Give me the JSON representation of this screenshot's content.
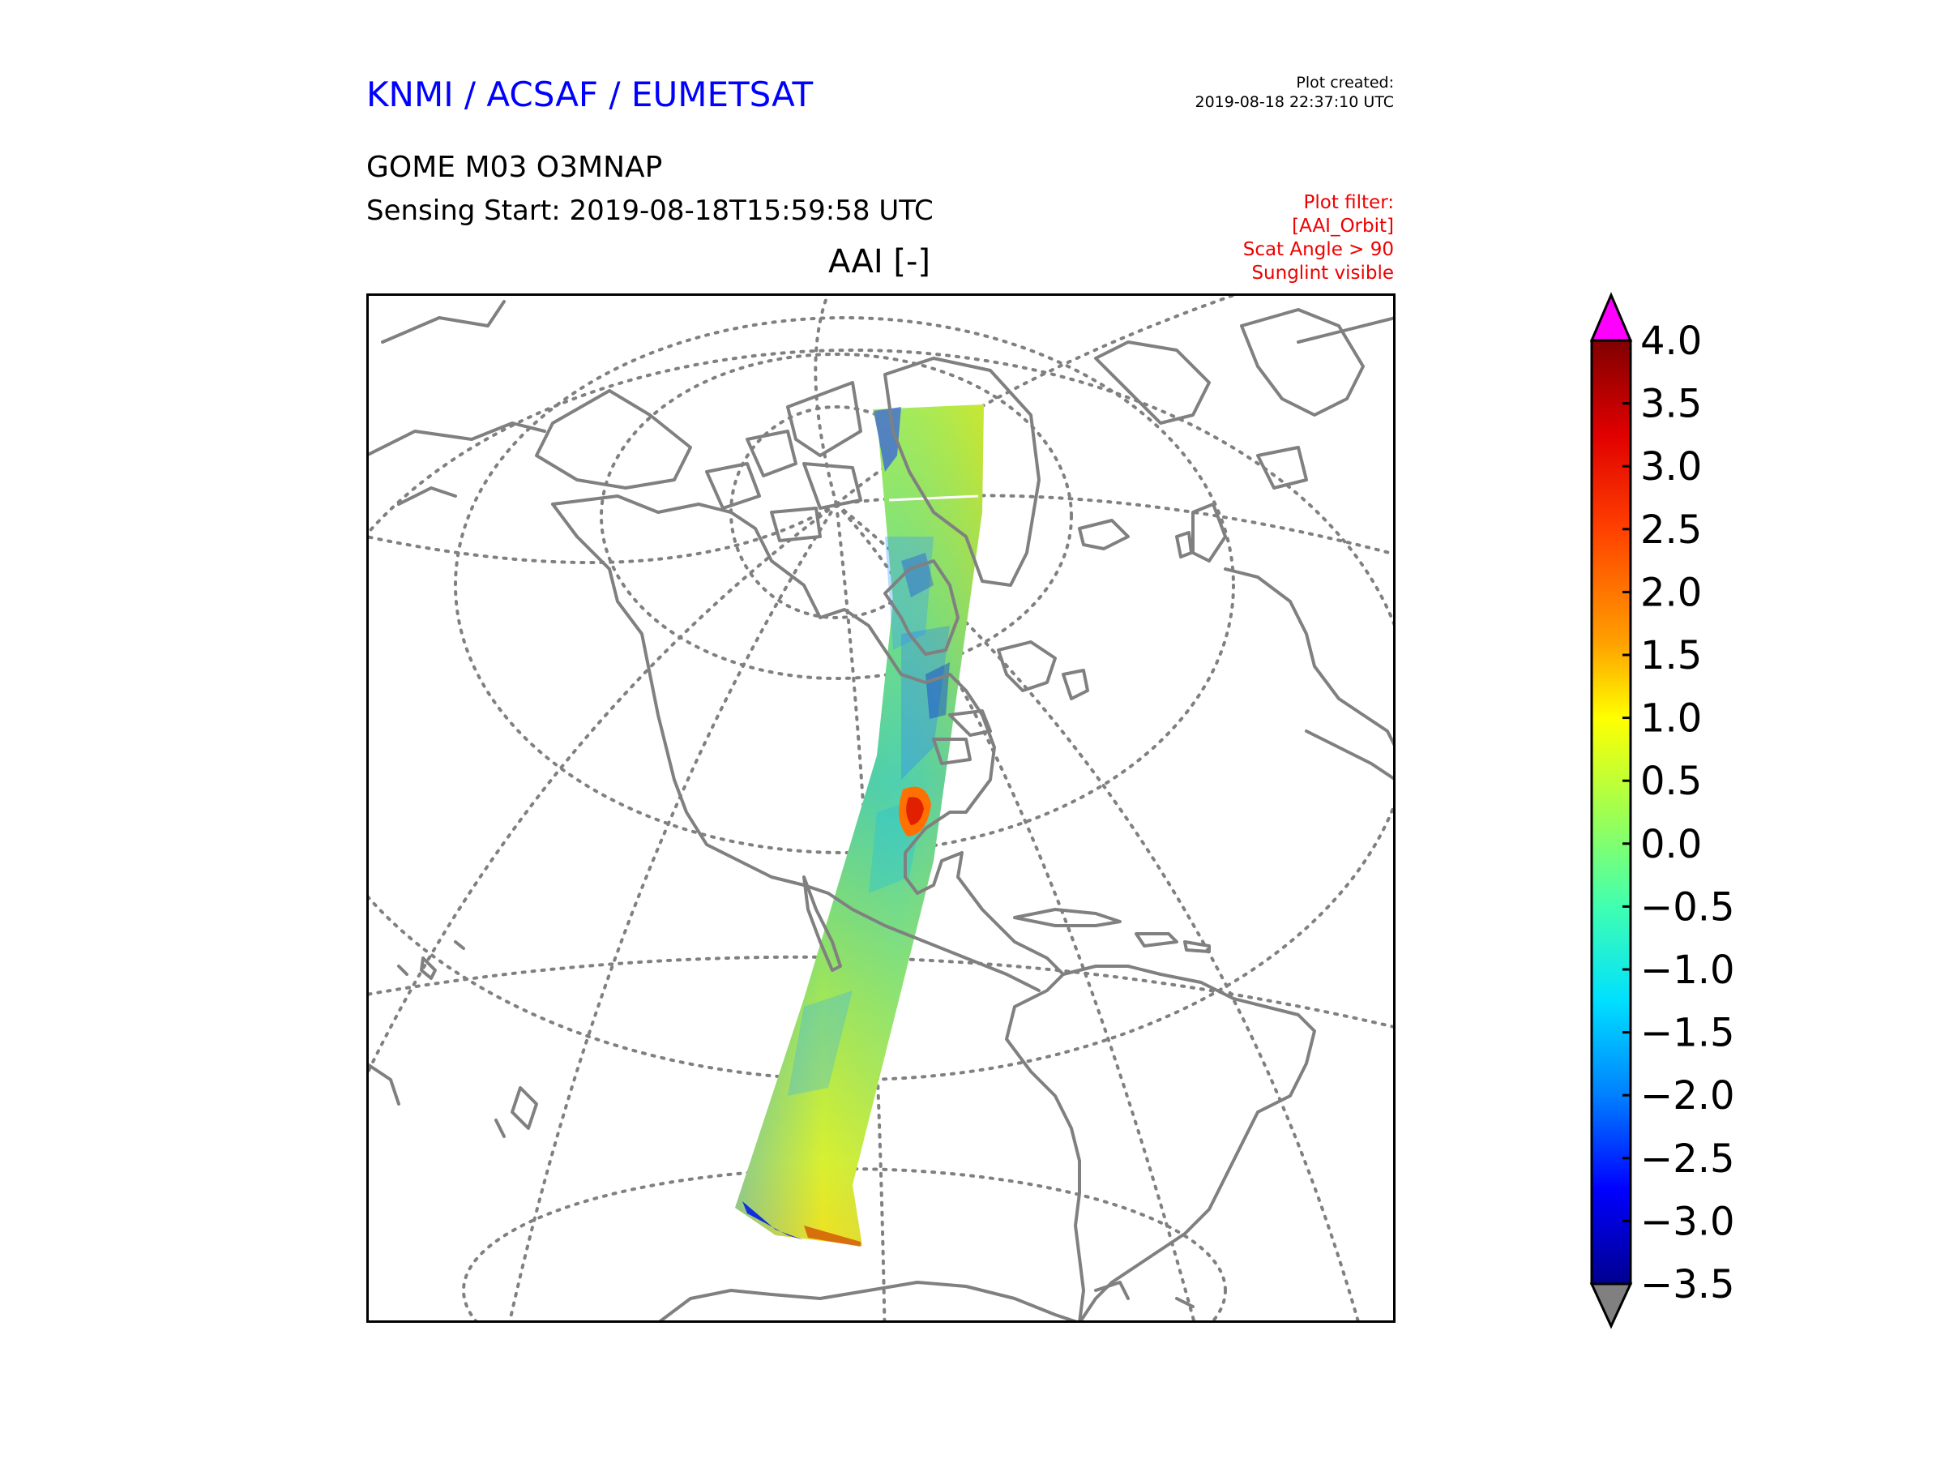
{
  "header": {
    "organization": "KNMI / ACSAF / EUMETSAT",
    "plot_created_label": "Plot created:",
    "plot_created_time": "2019-08-18 22:37:10 UTC",
    "product": "GOME M03 O3MNAP",
    "sensing_start": "Sensing Start: 2019-08-18T15:59:58 UTC",
    "filter_lines": [
      "Plot filter:",
      "[AAI_Orbit]",
      "Scat Angle > 90",
      "Sunglint visible"
    ]
  },
  "map": {
    "title": "AAI [-]",
    "projection": "orthographic",
    "coastline_color": "#808080",
    "gridline_color": "#808080"
  },
  "colorbar": {
    "ticks": [
      "4.0",
      "3.5",
      "3.0",
      "2.5",
      "2.0",
      "1.5",
      "1.0",
      "0.5",
      "0.0",
      "−0.5",
      "−1.0",
      "−1.5",
      "−2.0",
      "−2.5",
      "−3.0",
      "−3.5"
    ],
    "min": -3.5,
    "max": 4.0,
    "colormap": "jet",
    "over_color": "#ff00ff",
    "under_color": "#808080"
  }
}
